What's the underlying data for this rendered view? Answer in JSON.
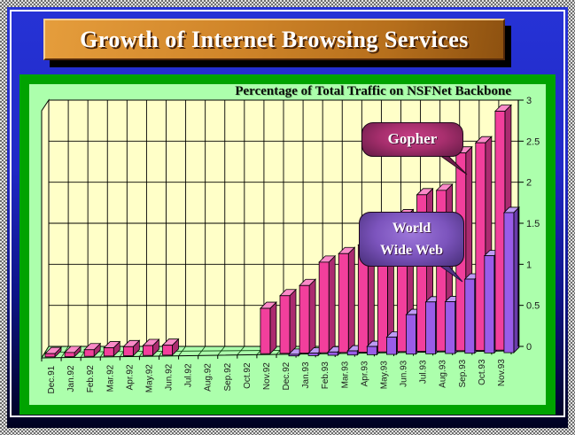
{
  "slide": {
    "title": "Growth of Internet Browsing Services"
  },
  "chart_data": {
    "type": "bar",
    "style": "3d-clustered-columns",
    "title": "Percentage of Total Traffic on NSFNet Backbone",
    "xlabel": "",
    "ylabel": "",
    "ylim": [
      0,
      3
    ],
    "ytick_labels": [
      "0",
      "0.5",
      "1",
      "1.5",
      "2",
      "2.5",
      "3"
    ],
    "ytick_values": [
      0,
      0.5,
      1,
      1.5,
      2,
      2.5,
      3
    ],
    "legend_position": "floating-callouts",
    "grid": "on",
    "categories": [
      "Dec.91",
      "Jan.92",
      "Feb.92",
      "Mar.92",
      "Apr.92",
      "May.92",
      "Jun.92",
      "Jul.92",
      "Aug.92",
      "Sep.92",
      "Oct.92",
      "Nov.92",
      "Dec.92",
      "Jan.93",
      "Feb.93",
      "Mar.93",
      "Apr.93",
      "May.93",
      "Jun.93",
      "Jul.93",
      "Aug.93",
      "Sep.93",
      "Oct.93",
      "Nov.93"
    ],
    "series": [
      {
        "name": "Gopher",
        "color": "#f23f9c",
        "color_dark": "#ab2b70",
        "color_light": "#fa8ac8",
        "values": [
          0.04,
          0.05,
          0.08,
          0.1,
          0.11,
          0.12,
          0.12,
          0,
          0,
          0,
          0,
          0.55,
          0.7,
          0.82,
          1.1,
          1.2,
          1.3,
          1.45,
          1.65,
          1.9,
          1.95,
          2.4,
          2.52,
          2.9
        ]
      },
      {
        "name": "World Wide Web",
        "color": "#9a5ce8",
        "color_dark": "#6b3cac",
        "color_light": "#be9af4",
        "values": [
          0,
          0,
          0,
          0,
          0,
          0,
          0,
          0,
          0,
          0,
          0,
          0.01,
          0.02,
          0.03,
          0.04,
          0.05,
          0.1,
          0.21,
          0.48,
          0.63,
          0.63,
          0.9,
          1.18,
          1.7
        ]
      }
    ],
    "wall_color": "#ffffc8",
    "floor_color": "#acffac",
    "gridline_color": "#000000"
  },
  "callouts": {
    "gopher_label": "Gopher",
    "www_label_line1": "World",
    "www_label_line2": "Wide Web"
  }
}
